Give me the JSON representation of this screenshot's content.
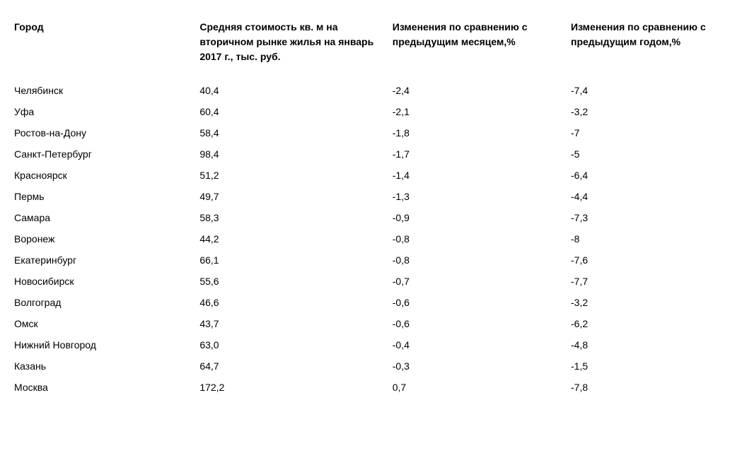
{
  "table": {
    "type": "table",
    "background_color": "#ffffff",
    "text_color": "#000000",
    "header_fontsize": 14,
    "cell_fontsize": 14,
    "header_fontweight": "bold",
    "columns": [
      {
        "key": "city",
        "label": "Город",
        "width": "26%",
        "align": "left"
      },
      {
        "key": "price",
        "label": "Средняя стоимость кв. м на вторичном рынке жилья на январь 2017 г., тыс. руб.",
        "width": "27%",
        "align": "left"
      },
      {
        "key": "month_change",
        "label": "Изменения по сравнению с предыдущим месяцем,%",
        "width": "25%",
        "align": "left"
      },
      {
        "key": "year_change",
        "label": "Изменения по сравнению с предыдущим годом,%",
        "width": "22%",
        "align": "left"
      }
    ],
    "rows": [
      {
        "city": "Челябинск",
        "price": "40,4",
        "month_change": "-2,4",
        "year_change": "-7,4"
      },
      {
        "city": "Уфа",
        "price": "60,4",
        "month_change": "-2,1",
        "year_change": "-3,2"
      },
      {
        "city": "Ростов-на-Дону",
        "price": "58,4",
        "month_change": "-1,8",
        "year_change": "-7"
      },
      {
        "city": "Санкт-Петербург",
        "price": "98,4",
        "month_change": "-1,7",
        "year_change": "-5"
      },
      {
        "city": "Красноярск",
        "price": "51,2",
        "month_change": "-1,4",
        "year_change": "-6,4"
      },
      {
        "city": "Пермь",
        "price": "49,7",
        "month_change": "-1,3",
        "year_change": "-4,4"
      },
      {
        "city": "Самара",
        "price": "58,3",
        "month_change": "-0,9",
        "year_change": "-7,3"
      },
      {
        "city": "Воронеж",
        "price": "44,2",
        "month_change": "-0,8",
        "year_change": "-8"
      },
      {
        "city": "Екатеринбург",
        "price": "66,1",
        "month_change": "-0,8",
        "year_change": "-7,6"
      },
      {
        "city": "Новосибирск",
        "price": "55,6",
        "month_change": "-0,7",
        "year_change": "-7,7"
      },
      {
        "city": "Волгоград",
        "price": "46,6",
        "month_change": "-0,6",
        "year_change": "-3,2"
      },
      {
        "city": "Омск",
        "price": "43,7",
        "month_change": "-0,6",
        "year_change": "-6,2"
      },
      {
        "city": "Нижний Новгород",
        "price": "63,0",
        "month_change": "-0,4",
        "year_change": "-4,8"
      },
      {
        "city": "Казань",
        "price": "64,7",
        "month_change": "-0,3",
        "year_change": "-1,5"
      },
      {
        "city": "Москва",
        "price": "172,2",
        "month_change": "0,7",
        "year_change": "-7,8"
      }
    ]
  }
}
